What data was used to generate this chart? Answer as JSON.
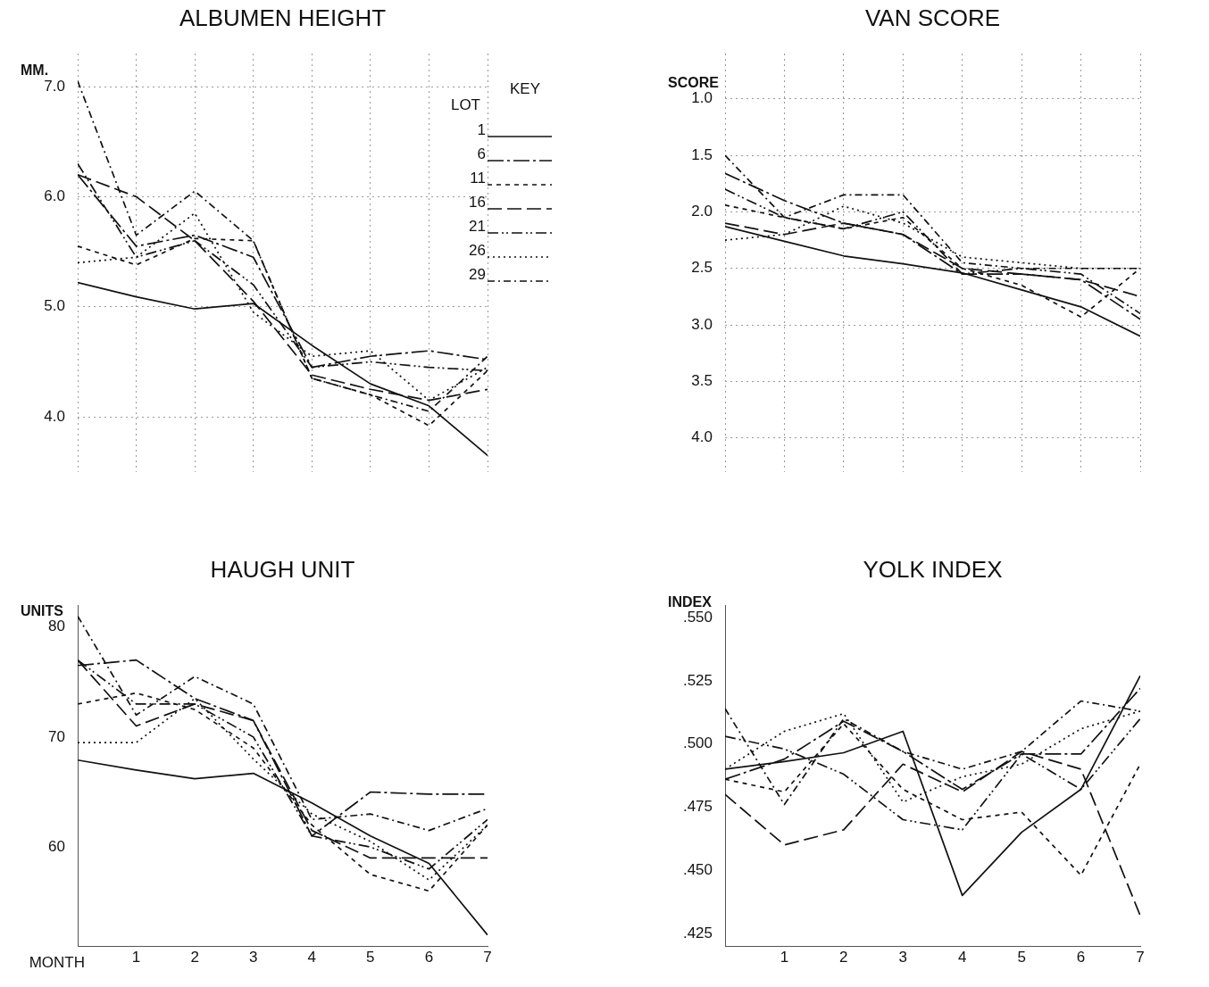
{
  "chart_data": [
    {
      "type": "line",
      "title": "ALBUMEN HEIGHT",
      "ylabel": "MM.",
      "legend": "top right",
      "legend_title": "KEY",
      "annotations": [
        "LOT"
      ],
      "grid": true,
      "tick_labels": "y",
      "x": [
        0,
        1,
        2,
        3,
        4,
        5,
        6,
        7
      ],
      "xlim": [
        0,
        7
      ],
      "xticks": [
        0,
        1,
        2,
        3,
        4,
        5,
        6,
        7
      ],
      "ylim": [
        3.5,
        7.3
      ],
      "yticks": [
        {
          "value": 4,
          "label": "4.0"
        },
        {
          "value": 5,
          "label": "5.0"
        },
        {
          "value": 6,
          "label": "6.0"
        },
        {
          "value": 7,
          "label": "7.0"
        }
      ],
      "series": [
        {
          "name": "1",
          "color": "#111111",
          "line_style": "solid",
          "values": [
            5.22,
            5.09,
            4.98,
            5.03,
            4.65,
            4.3,
            4.1,
            3.65
          ]
        },
        {
          "name": "6",
          "color": "#111111",
          "line_style": "dashed",
          "values": [
            6.2,
            5.55,
            5.65,
            5.45,
            4.45,
            4.55,
            4.6,
            4.52
          ]
        },
        {
          "name": "11",
          "color": "#111111",
          "line_style": "dashed",
          "values": [
            5.55,
            5.38,
            5.62,
            5.6,
            4.35,
            4.2,
            3.92,
            4.42
          ]
        },
        {
          "name": "16",
          "color": "#111111",
          "line_style": "dashed",
          "values": [
            6.2,
            6.0,
            5.6,
            5.05,
            4.38,
            4.25,
            4.15,
            4.25
          ]
        },
        {
          "name": "21",
          "color": "#111111",
          "line_style": "dashed",
          "values": [
            6.3,
            5.45,
            5.6,
            5.2,
            4.45,
            4.5,
            4.45,
            4.42
          ]
        },
        {
          "name": "26",
          "color": "#111111",
          "line_style": "dotted",
          "values": [
            5.4,
            5.45,
            5.85,
            4.95,
            4.55,
            4.6,
            4.15,
            4.45
          ]
        },
        {
          "name": "29",
          "color": "#111111",
          "line_style": "dashed",
          "values": [
            7.05,
            5.65,
            6.05,
            5.6,
            4.35,
            4.2,
            4.05,
            4.55
          ]
        }
      ]
    },
    {
      "type": "line",
      "title": "VAN SCORE",
      "ylabel": "SCORE",
      "legend": false,
      "grid": true,
      "tick_labels": "y",
      "x": [
        0,
        1,
        2,
        3,
        4,
        5,
        6,
        7
      ],
      "xlim": [
        0,
        7
      ],
      "xticks": [
        0,
        1,
        2,
        3,
        4,
        5,
        6,
        7
      ],
      "ylim": [
        4.3,
        0.6
      ],
      "yticks": [
        {
          "value": 1,
          "label": "1.0"
        },
        1.5,
        {
          "value": 2,
          "label": "2.0"
        },
        2.5,
        {
          "value": 3,
          "label": "3.0"
        },
        3.5,
        {
          "value": 4,
          "label": "4.0"
        }
      ],
      "series": [
        {
          "color": "#111111",
          "line_style": "solid",
          "values": [
            2.13,
            2.26,
            2.39,
            2.46,
            2.54,
            2.69,
            2.84,
            3.1
          ]
        },
        {
          "color": "#111111",
          "line_style": "dashed",
          "values": [
            1.66,
            1.9,
            2.1,
            2.2,
            2.55,
            2.55,
            2.6,
            2.95
          ]
        },
        {
          "color": "#111111",
          "line_style": "dashed",
          "values": [
            1.94,
            2.05,
            2.15,
            2.05,
            2.5,
            2.65,
            2.93,
            2.5
          ]
        },
        {
          "color": "#111111",
          "line_style": "dashed",
          "values": [
            2.1,
            2.2,
            2.1,
            2.2,
            2.5,
            2.55,
            2.6,
            2.75
          ]
        },
        {
          "color": "#111111",
          "line_style": "dashed",
          "values": [
            1.8,
            2.05,
            2.15,
            2.0,
            2.55,
            2.5,
            2.55,
            2.9
          ]
        },
        {
          "color": "#111111",
          "line_style": "dotted",
          "values": [
            2.25,
            2.2,
            1.95,
            2.1,
            2.4,
            2.45,
            2.5,
            2.5
          ]
        },
        {
          "color": "#111111",
          "line_style": "dashed",
          "values": [
            1.5,
            2.05,
            1.85,
            1.85,
            2.45,
            2.5,
            2.5,
            2.5
          ]
        }
      ]
    },
    {
      "type": "line",
      "title": "HAUGH UNIT",
      "ylabel": "UNITS",
      "xlabel": "MONTH",
      "legend": false,
      "grid": false,
      "x": [
        0,
        1,
        2,
        3,
        4,
        5,
        6,
        7
      ],
      "xlim": [
        0,
        7
      ],
      "xticks": [
        1,
        2,
        3,
        4,
        5,
        6,
        7
      ],
      "ylim": [
        51,
        82
      ],
      "yticks": [
        60,
        70,
        80
      ],
      "series": [
        {
          "color": "#111111",
          "line_style": "solid",
          "values": [
            67.9,
            67,
            66.2,
            66.7,
            64,
            61,
            58.5,
            52
          ]
        },
        {
          "color": "#111111",
          "line_style": "dashed",
          "values": [
            76.5,
            77,
            73.5,
            71.5,
            61,
            65,
            64.8,
            64.8
          ]
        },
        {
          "color": "#111111",
          "line_style": "dashed",
          "values": [
            73,
            74,
            72.5,
            69,
            62,
            57.5,
            56,
            62
          ]
        },
        {
          "color": "#111111",
          "line_style": "dashed",
          "values": [
            77,
            71,
            73,
            71.5,
            61.5,
            59,
            59,
            59
          ]
        },
        {
          "color": "#111111",
          "line_style": "dashed",
          "values": [
            77,
            73,
            73,
            70,
            61,
            60,
            58,
            62.5
          ]
        },
        {
          "color": "#111111",
          "line_style": "dotted",
          "values": [
            69.5,
            69.5,
            73.5,
            68,
            63,
            60.5,
            57,
            62
          ]
        },
        {
          "color": "#111111",
          "line_style": "dashed",
          "values": [
            81,
            72,
            75.5,
            73,
            62.5,
            63,
            61.5,
            63.5
          ]
        }
      ]
    },
    {
      "type": "line",
      "title": "YOLK INDEX",
      "ylabel": "INDEX",
      "legend": false,
      "grid": false,
      "x": [
        0,
        1,
        2,
        3,
        4,
        5,
        6,
        7
      ],
      "xlim": [
        0,
        7
      ],
      "xticks": [
        1,
        2,
        3,
        4,
        5,
        6,
        7
      ],
      "ylim": [
        0.42,
        0.555
      ],
      "yticks": [
        {
          "value": 0.425,
          "label": ".425"
        },
        {
          "value": 0.45,
          "label": ".450"
        },
        {
          "value": 0.475,
          "label": ".475"
        },
        {
          "value": 0.5,
          "label": ".500"
        },
        {
          "value": 0.525,
          "label": ".525"
        },
        {
          "value": 0.55,
          "label": ".550"
        }
      ],
      "series": [
        {
          "color": "#111111",
          "line_style": "solid",
          "values": [
            0.49,
            0.493,
            0.4965,
            0.505,
            0.44,
            0.465,
            0.482,
            0.527
          ]
        },
        {
          "color": "#111111",
          "line_style": "dashed",
          "values": [
            0.486,
            0.494,
            0.509,
            0.497,
            0.482,
            0.496,
            0.496,
            0.522
          ]
        },
        {
          "color": "#111111",
          "line_style": "dashed",
          "values": [
            0.486,
            0.481,
            0.508,
            0.482,
            0.47,
            0.473,
            0.448,
            0.492
          ]
        },
        {
          "color": "#111111",
          "line_style": "dashed",
          "values": [
            0.48,
            0.46,
            0.466,
            0.492,
            0.481,
            0.497,
            0.49,
            0.432
          ]
        },
        {
          "color": "#111111",
          "line_style": "dashed",
          "values": [
            0.503,
            0.498,
            0.488,
            0.47,
            0.466,
            0.496,
            0.482,
            0.51
          ]
        },
        {
          "color": "#111111",
          "line_style": "dotted",
          "values": [
            0.49,
            0.505,
            0.512,
            0.477,
            0.487,
            0.492,
            0.506,
            0.513
          ]
        },
        {
          "color": "#111111",
          "line_style": "dashed",
          "values": [
            0.514,
            0.476,
            0.51,
            0.497,
            0.49,
            0.497,
            0.517,
            0.513
          ]
        }
      ]
    }
  ]
}
